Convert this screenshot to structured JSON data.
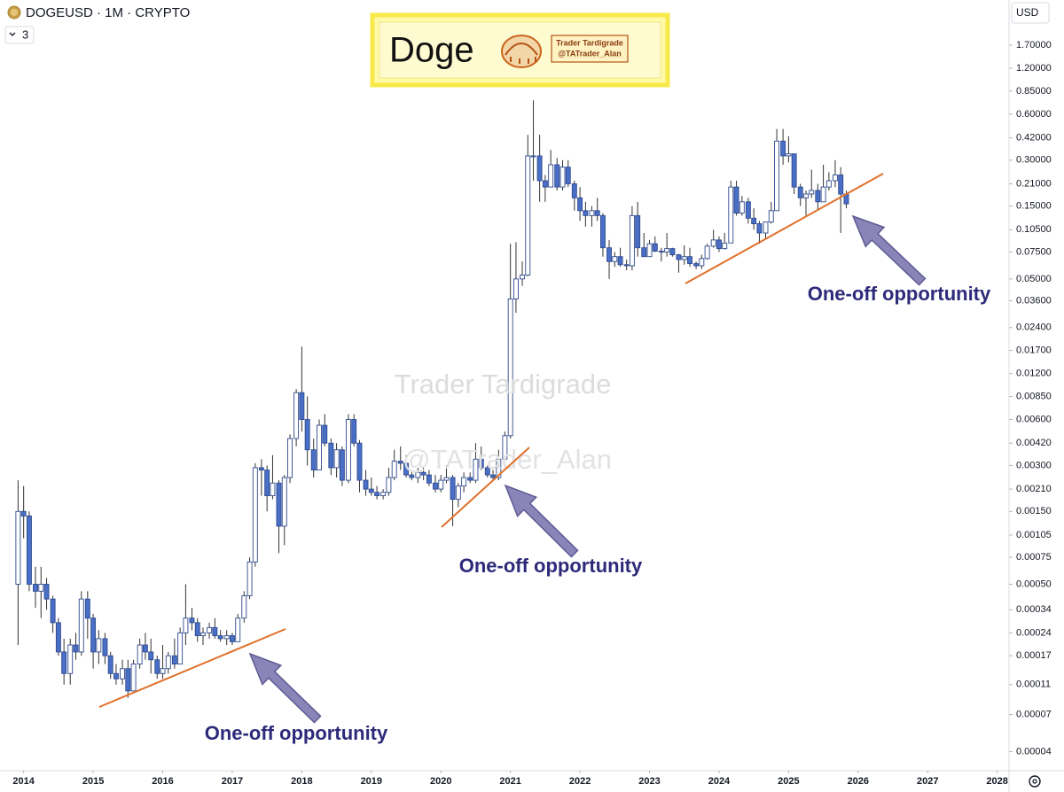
{
  "chart_data": {
    "type": "candlestick",
    "title": "DOGEUSD · 1M · CRYPTO",
    "currency": "USD",
    "indicator_count": 3,
    "log_scale": true,
    "up_color": "#ffffff",
    "down_color": "#4a6fc7",
    "border_color": "#2e4a8f",
    "wick_color": "#333333",
    "xlim": [
      2013.66,
      2028.17
    ],
    "xticks": [
      2014,
      2015,
      2016,
      2017,
      2018,
      2019,
      2020,
      2021,
      2022,
      2023,
      2024,
      2025,
      2026,
      2027,
      2028
    ],
    "ylim": [
      3e-05,
      3.36
    ],
    "yticks": [
      {
        "value": 1.7,
        "label": "1.70000"
      },
      {
        "value": 1.2,
        "label": "1.20000"
      },
      {
        "value": 0.85,
        "label": "0.85000"
      },
      {
        "value": 0.6,
        "label": "0.60000"
      },
      {
        "value": 0.42,
        "label": "0.42000"
      },
      {
        "value": 0.3,
        "label": "0.30000"
      },
      {
        "value": 0.21,
        "label": "0.21000"
      },
      {
        "value": 0.15,
        "label": "0.15000"
      },
      {
        "value": 0.105,
        "label": "0.10500"
      },
      {
        "value": 0.075,
        "label": "0.07500"
      },
      {
        "value": 0.05,
        "label": "0.05000"
      },
      {
        "value": 0.036,
        "label": "0.03600"
      },
      {
        "value": 0.024,
        "label": "0.02400"
      },
      {
        "value": 0.017,
        "label": "0.01700"
      },
      {
        "value": 0.012,
        "label": "0.01200"
      },
      {
        "value": 0.0085,
        "label": "0.00850"
      },
      {
        "value": 0.006,
        "label": "0.00600"
      },
      {
        "value": 0.0042,
        "label": "0.00420"
      },
      {
        "value": 0.003,
        "label": "0.00300"
      },
      {
        "value": 0.0021,
        "label": "0.00210"
      },
      {
        "value": 0.0015,
        "label": "0.00150"
      },
      {
        "value": 0.00105,
        "label": "0.00105"
      },
      {
        "value": 0.00075,
        "label": "0.00075"
      },
      {
        "value": 0.0005,
        "label": "0.00050"
      },
      {
        "value": 0.00034,
        "label": "0.00034"
      },
      {
        "value": 0.00024,
        "label": "0.00024"
      },
      {
        "value": 0.00017,
        "label": "0.00017"
      },
      {
        "value": 0.00011,
        "label": "0.00011"
      },
      {
        "value": 7e-05,
        "label": "0.00007"
      },
      {
        "value": 4e-05,
        "label": "0.00004"
      }
    ],
    "x": [
      2013.92,
      2014,
      2014.08,
      2014.17,
      2014.25,
      2014.33,
      2014.42,
      2014.5,
      2014.58,
      2014.67,
      2014.75,
      2014.83,
      2014.92,
      2015,
      2015.08,
      2015.17,
      2015.25,
      2015.33,
      2015.42,
      2015.5,
      2015.58,
      2015.67,
      2015.75,
      2015.83,
      2015.92,
      2016,
      2016.08,
      2016.17,
      2016.25,
      2016.33,
      2016.42,
      2016.5,
      2016.58,
      2016.67,
      2016.75,
      2016.83,
      2016.92,
      2017,
      2017.08,
      2017.17,
      2017.25,
      2017.33,
      2017.42,
      2017.5,
      2017.58,
      2017.67,
      2017.75,
      2017.83,
      2017.92,
      2018,
      2018.08,
      2018.17,
      2018.25,
      2018.33,
      2018.42,
      2018.5,
      2018.58,
      2018.67,
      2018.75,
      2018.83,
      2018.92,
      2019,
      2019.08,
      2019.17,
      2019.25,
      2019.33,
      2019.42,
      2019.5,
      2019.58,
      2019.67,
      2019.75,
      2019.83,
      2019.92,
      2020,
      2020.08,
      2020.17,
      2020.25,
      2020.33,
      2020.42,
      2020.5,
      2020.58,
      2020.67,
      2020.75,
      2020.83,
      2020.92,
      2021,
      2021.08,
      2021.17,
      2021.25,
      2021.33,
      2021.42,
      2021.5,
      2021.58,
      2021.67,
      2021.75,
      2021.83,
      2021.92,
      2022,
      2022.08,
      2022.17,
      2022.25,
      2022.33,
      2022.42,
      2022.5,
      2022.58,
      2022.67,
      2022.75,
      2022.83,
      2022.92,
      2023,
      2023.08,
      2023.17,
      2023.25,
      2023.33,
      2023.42,
      2023.5,
      2023.58,
      2023.67,
      2023.75,
      2023.83,
      2023.92,
      2024,
      2024.08,
      2024.17,
      2024.25,
      2024.33,
      2024.42,
      2024.5,
      2024.58,
      2024.67,
      2024.75,
      2024.83,
      2024.92,
      2025,
      2025.08,
      2025.17,
      2025.25,
      2025.33,
      2025.42,
      2025.5,
      2025.58,
      2025.67,
      2025.75,
      2025.83
    ],
    "open": [
      0.0005,
      0.0015,
      0.0014,
      0.0005,
      0.00045,
      0.0005,
      0.0004,
      0.00028,
      0.00018,
      0.00013,
      0.0002,
      0.00018,
      0.0004,
      0.0003,
      0.00018,
      0.00022,
      0.00017,
      0.00013,
      0.00012,
      0.00014,
      0.0001,
      0.00015,
      0.0002,
      0.00018,
      0.00016,
      0.00013,
      0.00014,
      0.00017,
      0.00015,
      0.00024,
      0.0003,
      0.00028,
      0.00023,
      0.00024,
      0.00026,
      0.00023,
      0.00022,
      0.00023,
      0.00021,
      0.0003,
      0.00042,
      0.0007,
      0.0029,
      0.0028,
      0.0019,
      0.0023,
      0.0012,
      0.0025,
      0.0045,
      0.009,
      0.006,
      0.0038,
      0.0028,
      0.0055,
      0.0042,
      0.0029,
      0.0038,
      0.0024,
      0.006,
      0.0042,
      0.0024,
      0.0021,
      0.002,
      0.0019,
      0.002,
      0.0025,
      0.0032,
      0.0031,
      0.0026,
      0.0025,
      0.0027,
      0.0026,
      0.0023,
      0.0021,
      0.0024,
      0.0025,
      0.0018,
      0.0022,
      0.0025,
      0.0024,
      0.0033,
      0.0029,
      0.0026,
      0.0025,
      0.0033,
      0.0047,
      0.037,
      0.05,
      0.053,
      0.32,
      0.32,
      0.22,
      0.2,
      0.28,
      0.2,
      0.27,
      0.21,
      0.17,
      0.14,
      0.13,
      0.14,
      0.13,
      0.08,
      0.065,
      0.07,
      0.062,
      0.061,
      0.13,
      0.08,
      0.07,
      0.085,
      0.076,
      0.075,
      0.079,
      0.072,
      0.067,
      0.07,
      0.063,
      0.061,
      0.068,
      0.082,
      0.09,
      0.079,
      0.086,
      0.2,
      0.135,
      0.16,
      0.125,
      0.115,
      0.1,
      0.118,
      0.14,
      0.4,
      0.32,
      0.33,
      0.2,
      0.17,
      0.18,
      0.19,
      0.16,
      0.2,
      0.22,
      0.24,
      0.18
    ],
    "high": [
      0.0024,
      0.0022,
      0.0015,
      0.00065,
      0.00065,
      0.00055,
      0.00042,
      0.0003,
      0.00022,
      0.00022,
      0.00024,
      0.00045,
      0.00045,
      0.00032,
      0.00025,
      0.00024,
      0.00018,
      0.00015,
      0.00016,
      0.00016,
      0.00016,
      0.00022,
      0.00024,
      0.00022,
      0.00017,
      0.0002,
      0.00018,
      0.00022,
      0.00026,
      0.0005,
      0.00035,
      0.0003,
      0.00026,
      0.00028,
      0.0003,
      0.00025,
      0.00025,
      0.00024,
      0.00032,
      0.00045,
      0.00075,
      0.0031,
      0.0033,
      0.003,
      0.0035,
      0.0024,
      0.0026,
      0.0048,
      0.0095,
      0.018,
      0.0085,
      0.0045,
      0.006,
      0.0065,
      0.0045,
      0.0042,
      0.004,
      0.0065,
      0.0065,
      0.0044,
      0.0028,
      0.0025,
      0.0022,
      0.0021,
      0.0029,
      0.0038,
      0.004,
      0.0035,
      0.0028,
      0.0029,
      0.0029,
      0.0028,
      0.0026,
      0.0026,
      0.003,
      0.0026,
      0.0023,
      0.0027,
      0.0027,
      0.0042,
      0.004,
      0.003,
      0.0028,
      0.0038,
      0.005,
      0.085,
      0.087,
      0.065,
      0.44,
      0.74,
      0.44,
      0.24,
      0.35,
      0.31,
      0.3,
      0.3,
      0.22,
      0.2,
      0.16,
      0.15,
      0.17,
      0.135,
      0.09,
      0.075,
      0.08,
      0.067,
      0.15,
      0.16,
      0.1,
      0.09,
      0.095,
      0.08,
      0.1,
      0.08,
      0.073,
      0.083,
      0.08,
      0.065,
      0.072,
      0.085,
      0.105,
      0.095,
      0.1,
      0.22,
      0.22,
      0.175,
      0.17,
      0.145,
      0.12,
      0.118,
      0.16,
      0.48,
      0.48,
      0.43,
      0.33,
      0.21,
      0.19,
      0.26,
      0.21,
      0.28,
      0.25,
      0.3,
      0.27,
      0.19
    ],
    "low": [
      0.0002,
      0.001,
      0.00045,
      0.00035,
      0.0003,
      0.00034,
      0.00024,
      0.00017,
      0.00011,
      0.00011,
      0.00016,
      0.00017,
      0.00022,
      0.00014,
      0.00015,
      0.00015,
      0.00012,
      0.00011,
      0.00011,
      9e-05,
      0.0001,
      0.00014,
      0.00016,
      0.00013,
      0.00012,
      0.00012,
      0.00013,
      0.00014,
      0.00015,
      0.0002,
      0.00025,
      0.00021,
      0.0002,
      0.00022,
      0.00022,
      0.00021,
      0.0002,
      0.0002,
      0.00021,
      0.00028,
      0.0004,
      0.00065,
      0.0019,
      0.0015,
      0.0018,
      0.0008,
      0.0009,
      0.0023,
      0.004,
      0.005,
      0.003,
      0.0025,
      0.0028,
      0.004,
      0.0026,
      0.0025,
      0.0022,
      0.0023,
      0.004,
      0.002,
      0.0019,
      0.0019,
      0.0018,
      0.0018,
      0.0019,
      0.0024,
      0.0028,
      0.0025,
      0.0024,
      0.0023,
      0.0024,
      0.0022,
      0.002,
      0.002,
      0.0023,
      0.0012,
      0.0016,
      0.002,
      0.0023,
      0.0023,
      0.0028,
      0.0025,
      0.0024,
      0.0024,
      0.003,
      0.0045,
      0.03,
      0.045,
      0.052,
      0.22,
      0.16,
      0.16,
      0.2,
      0.19,
      0.19,
      0.2,
      0.14,
      0.12,
      0.11,
      0.11,
      0.12,
      0.07,
      0.05,
      0.06,
      0.06,
      0.057,
      0.057,
      0.07,
      0.07,
      0.07,
      0.075,
      0.065,
      0.07,
      0.07,
      0.055,
      0.062,
      0.06,
      0.058,
      0.058,
      0.067,
      0.08,
      0.075,
      0.078,
      0.086,
      0.13,
      0.13,
      0.115,
      0.105,
      0.085,
      0.092,
      0.115,
      0.14,
      0.28,
      0.29,
      0.18,
      0.15,
      0.13,
      0.17,
      0.14,
      0.16,
      0.19,
      0.2,
      0.1,
      0.145
    ],
    "close": [
      0.0015,
      0.0014,
      0.0005,
      0.00045,
      0.0005,
      0.0004,
      0.00028,
      0.00018,
      0.00013,
      0.0002,
      0.00018,
      0.0004,
      0.0003,
      0.00018,
      0.00022,
      0.00017,
      0.00013,
      0.00012,
      0.00014,
      0.0001,
      0.00015,
      0.0002,
      0.00018,
      0.00016,
      0.00013,
      0.00014,
      0.00017,
      0.00015,
      0.00024,
      0.0003,
      0.00028,
      0.00023,
      0.00024,
      0.00026,
      0.00023,
      0.00022,
      0.00023,
      0.00021,
      0.0003,
      0.00042,
      0.0007,
      0.0029,
      0.0028,
      0.0019,
      0.0023,
      0.0012,
      0.0025,
      0.0045,
      0.009,
      0.006,
      0.0038,
      0.0028,
      0.0055,
      0.0042,
      0.0029,
      0.0038,
      0.0024,
      0.006,
      0.0042,
      0.0024,
      0.0021,
      0.002,
      0.0019,
      0.002,
      0.0025,
      0.0032,
      0.0031,
      0.0026,
      0.0025,
      0.0027,
      0.0026,
      0.0023,
      0.0021,
      0.0024,
      0.0025,
      0.0018,
      0.0022,
      0.0025,
      0.0024,
      0.0033,
      0.0029,
      0.0026,
      0.0025,
      0.0033,
      0.0047,
      0.037,
      0.05,
      0.053,
      0.32,
      0.32,
      0.22,
      0.2,
      0.28,
      0.2,
      0.27,
      0.21,
      0.17,
      0.14,
      0.13,
      0.14,
      0.13,
      0.08,
      0.065,
      0.07,
      0.062,
      0.061,
      0.13,
      0.08,
      0.07,
      0.085,
      0.076,
      0.075,
      0.079,
      0.072,
      0.067,
      0.07,
      0.063,
      0.061,
      0.068,
      0.082,
      0.09,
      0.079,
      0.086,
      0.2,
      0.135,
      0.16,
      0.125,
      0.115,
      0.1,
      0.118,
      0.14,
      0.4,
      0.32,
      0.33,
      0.2,
      0.17,
      0.18,
      0.19,
      0.16,
      0.2,
      0.22,
      0.24,
      0.18,
      0.155
    ],
    "logo": {
      "title": "Doge",
      "author": "Trader Tardigrade",
      "handle": "@TATrader_Alan"
    },
    "watermark": {
      "author": "Trader Tardigrade",
      "handle": "@TATrader_Alan"
    },
    "annotations": [
      "One-off opportunity",
      "One-off opportunity",
      "One-off opportunity"
    ]
  }
}
